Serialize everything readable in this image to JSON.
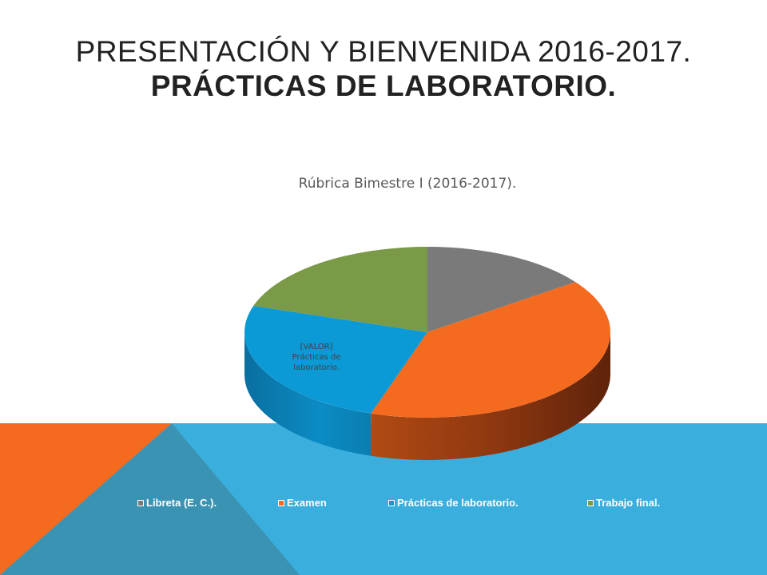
{
  "slide": {
    "title_line1": "PRESENTACIÓN Y BIENVENIDA 2016-2017.",
    "title_line2": "PRÁCTICAS DE LABORATORIO."
  },
  "colors": {
    "background_band": "#3aaedc",
    "corner_orange": "#f46a1f",
    "corner_teal": "#3b93b4",
    "libreta": "#7a7a7a",
    "examen": "#f46a1f",
    "practicas": "#0b9ad6",
    "trabajo": "#7a9a47"
  },
  "chart_data": {
    "type": "pie",
    "title": "Rúbrica Bimestre I (2016-2017).",
    "style": "3d",
    "legend_position": "bottom",
    "categories": [
      "Libreta (E. C.).",
      "Examen",
      "Prácticas de laboratorio.",
      "Trabajo final."
    ],
    "values": [
      15,
      40,
      25,
      20
    ],
    "data_labels": [
      {
        "category": "Prácticas de laboratorio.",
        "lines": [
          "[VALOR]",
          "Prácticas de",
          "laboratorio."
        ]
      }
    ]
  },
  "legend": {
    "items": [
      {
        "label": "Libreta (E. C.).",
        "color": "#7a7a7a"
      },
      {
        "label": "Examen",
        "color": "#f46a1f"
      },
      {
        "label": "Prácticas de laboratorio.",
        "color": "#0b9ad6"
      },
      {
        "label": "Trabajo final.",
        "color": "#7a9a47"
      }
    ]
  }
}
